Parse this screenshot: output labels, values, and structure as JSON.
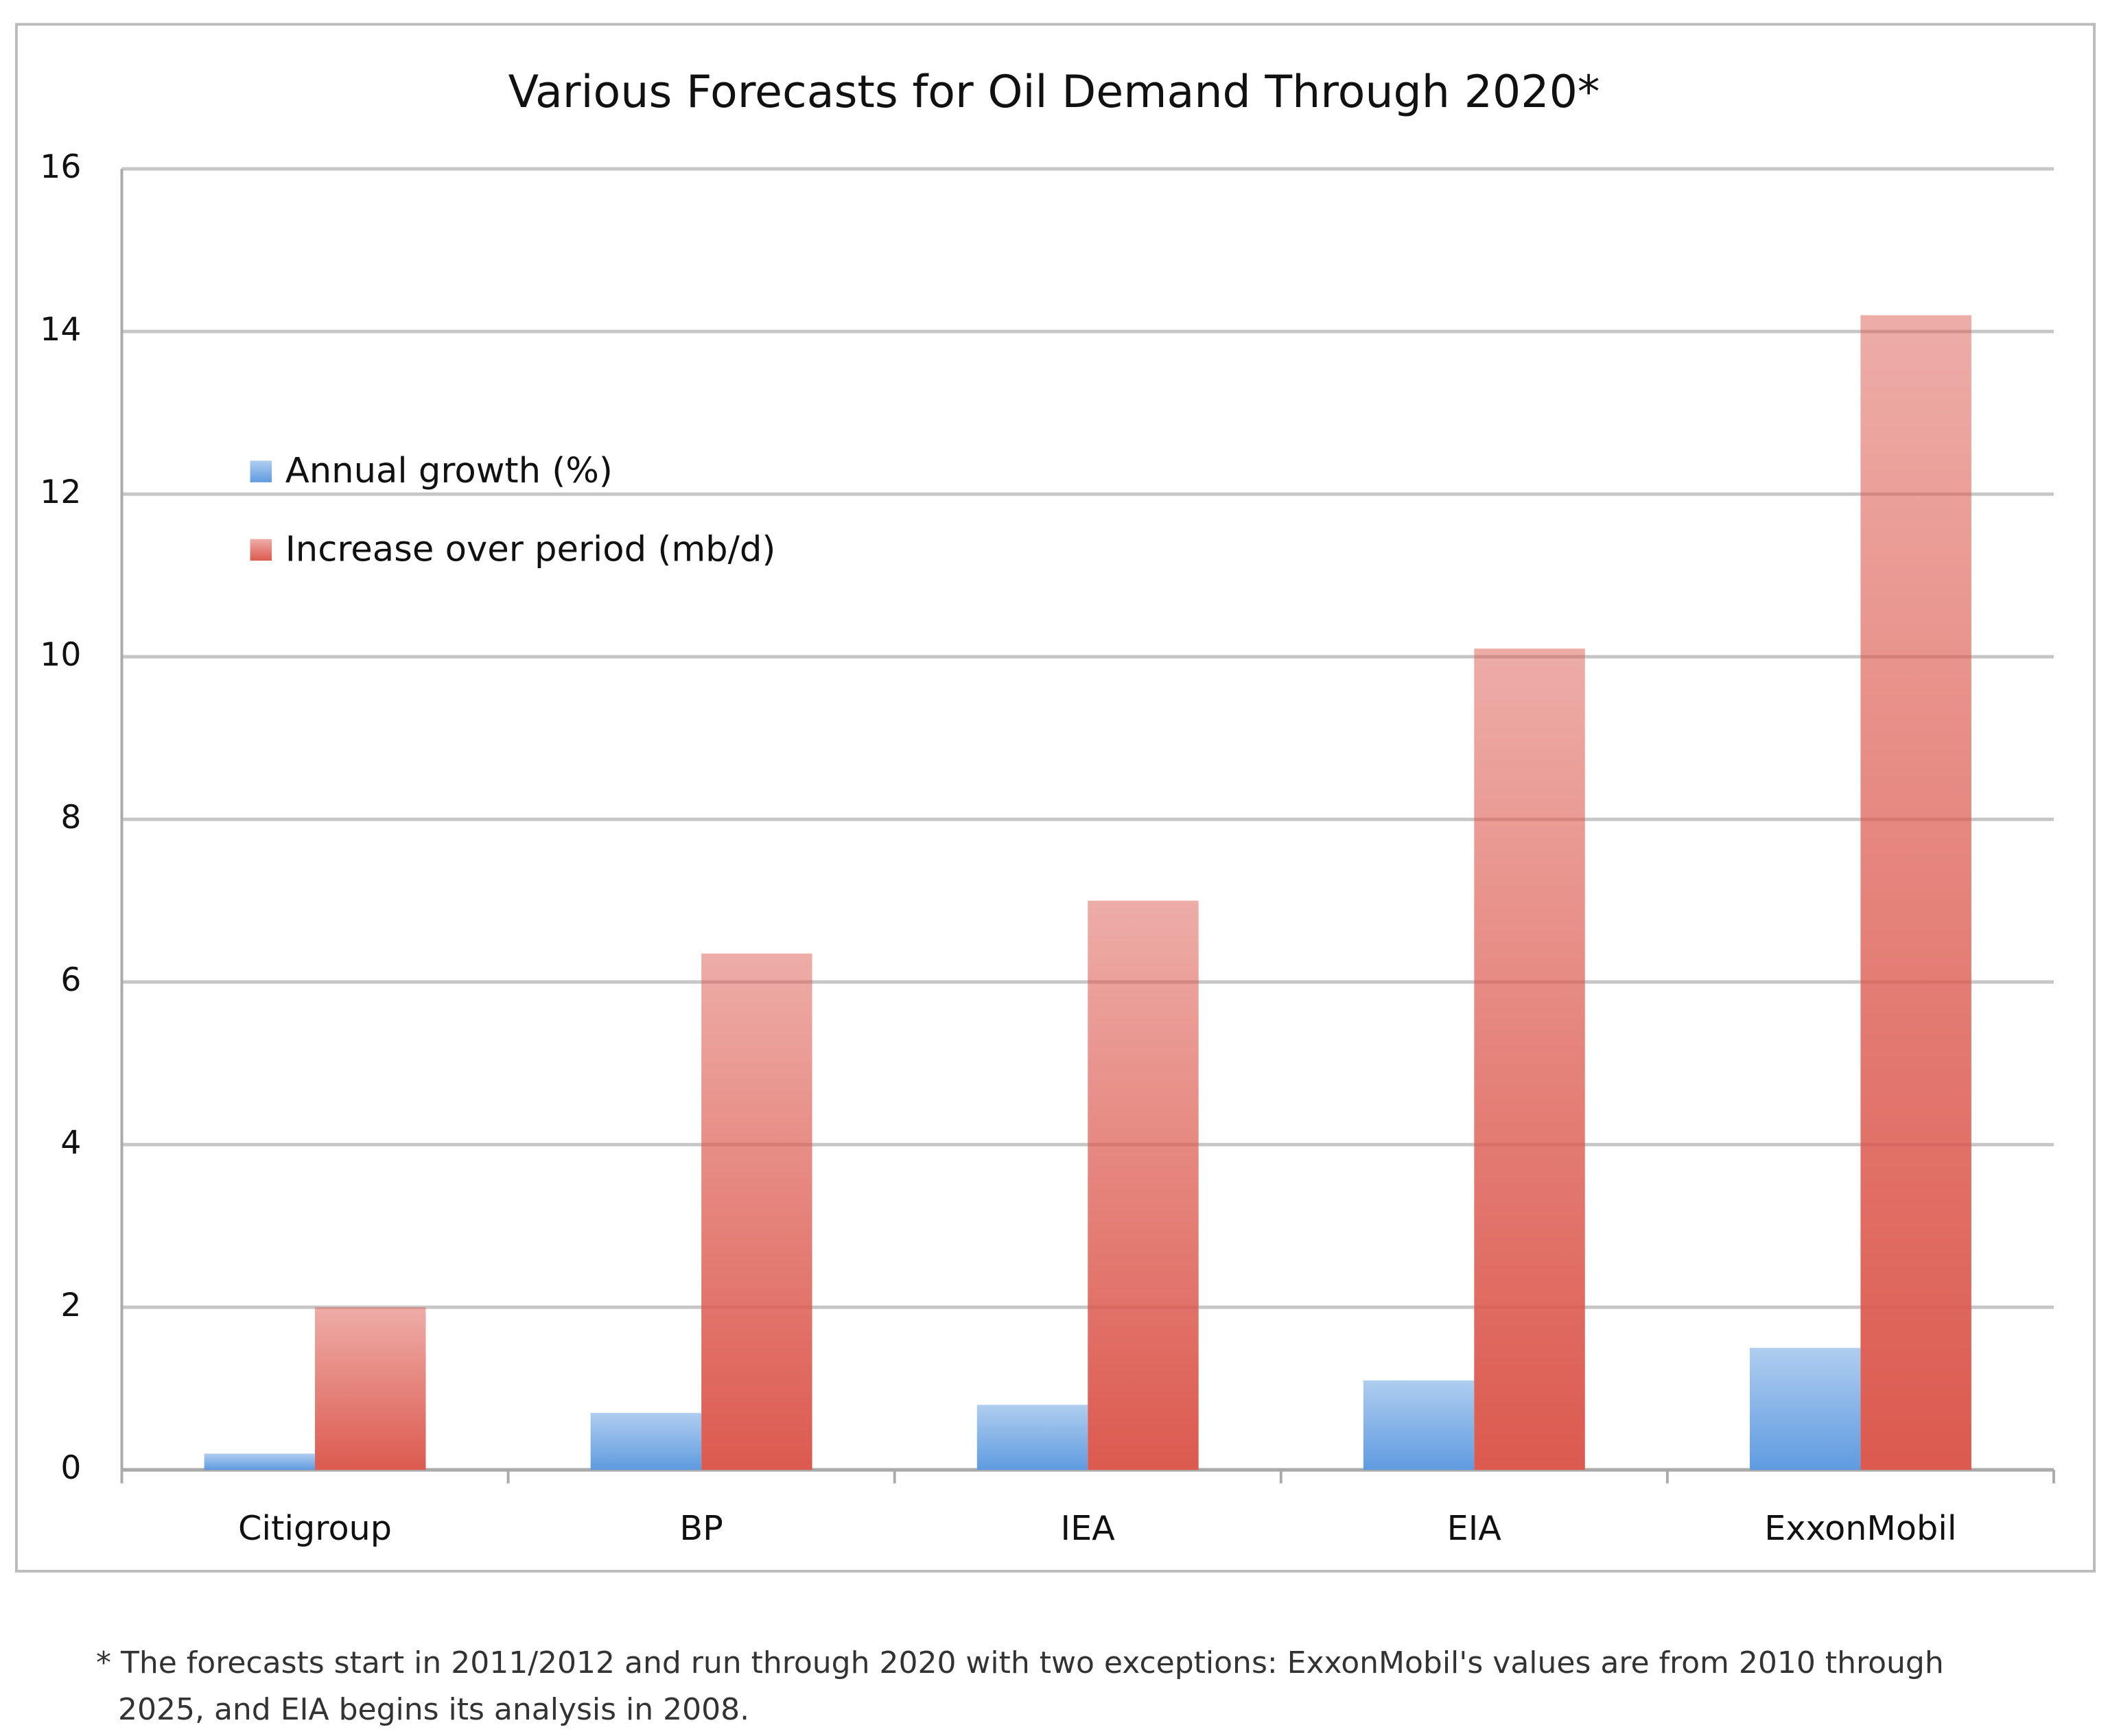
{
  "chart_data": {
    "type": "bar",
    "title": "Various Forecasts for Oil Demand Through 2020*",
    "categories": [
      "Citigroup",
      "BP",
      "IEA",
      "EIA",
      "ExxonMobil"
    ],
    "series": [
      {
        "name": "Annual growth (%)",
        "color": "#5f9be0",
        "values": [
          0.2,
          0.7,
          0.8,
          1.1,
          1.5
        ]
      },
      {
        "name": "Increase over period (mb/d)",
        "color": "#dc5a4f",
        "values": [
          2.0,
          6.35,
          7.0,
          10.1,
          14.2
        ]
      }
    ],
    "ylim": [
      0,
      16
    ],
    "yticks": [
      0,
      2,
      4,
      6,
      8,
      10,
      12,
      14,
      16
    ],
    "grid": true,
    "legend": "left",
    "footnote": "* The forecasts start in 2011/2012 and run through 2020 with two exceptions: ExxonMobil's values are from 2010 through 2025, and EIA begins its analysis in 2008."
  }
}
